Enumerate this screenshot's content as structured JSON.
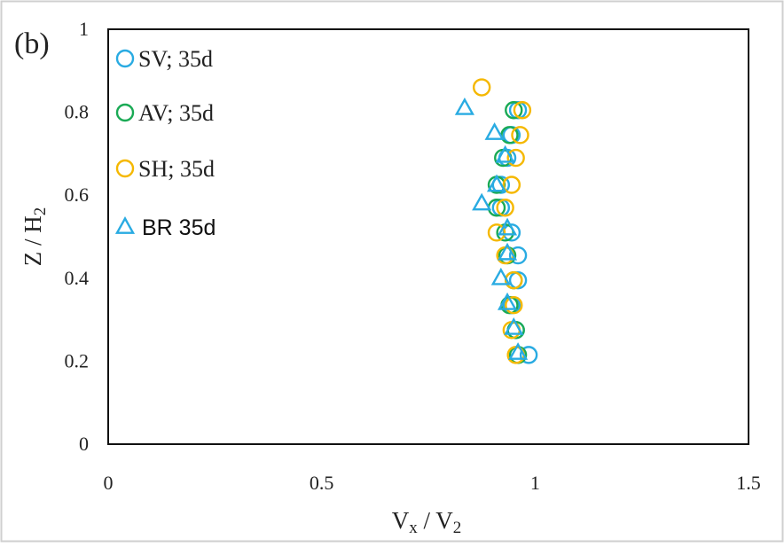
{
  "panel_label": "(b)",
  "chart_data": {
    "type": "scatter",
    "xlabel": "V_x / V_2",
    "ylabel": "Z / H_2",
    "xlim": [
      0,
      1.5
    ],
    "ylim": [
      0,
      1
    ],
    "xticks": [
      "0",
      "0.5",
      "1",
      "1.5"
    ],
    "yticks": [
      "0",
      "0.2",
      "0.4",
      "0.6",
      "0.8",
      "1"
    ],
    "legend_position": "top-left",
    "grid": false,
    "series": [
      {
        "name": "SV; 35d",
        "marker": "circle",
        "color": "#29abe2",
        "points": [
          {
            "x": 0.96,
            "y": 0.805
          },
          {
            "x": 0.945,
            "y": 0.745
          },
          {
            "x": 0.935,
            "y": 0.69
          },
          {
            "x": 0.92,
            "y": 0.625
          },
          {
            "x": 0.92,
            "y": 0.57
          },
          {
            "x": 0.945,
            "y": 0.51
          },
          {
            "x": 0.96,
            "y": 0.455
          },
          {
            "x": 0.96,
            "y": 0.395
          },
          {
            "x": 0.945,
            "y": 0.335
          },
          {
            "x": 0.955,
            "y": 0.275
          },
          {
            "x": 0.985,
            "y": 0.215
          }
        ]
      },
      {
        "name": "AV; 35d",
        "marker": "circle",
        "color": "#1aaa55",
        "points": [
          {
            "x": 0.95,
            "y": 0.805
          },
          {
            "x": 0.94,
            "y": 0.745
          },
          {
            "x": 0.925,
            "y": 0.69
          },
          {
            "x": 0.91,
            "y": 0.625
          },
          {
            "x": 0.91,
            "y": 0.57
          },
          {
            "x": 0.93,
            "y": 0.51
          },
          {
            "x": 0.935,
            "y": 0.455
          },
          {
            "x": 0.95,
            "y": 0.395
          },
          {
            "x": 0.94,
            "y": 0.335
          },
          {
            "x": 0.955,
            "y": 0.275
          },
          {
            "x": 0.96,
            "y": 0.215
          }
        ]
      },
      {
        "name": "SH; 35d",
        "marker": "circle",
        "color": "#f5b800",
        "points": [
          {
            "x": 0.875,
            "y": 0.86
          },
          {
            "x": 0.97,
            "y": 0.805
          },
          {
            "x": 0.965,
            "y": 0.745
          },
          {
            "x": 0.955,
            "y": 0.69
          },
          {
            "x": 0.945,
            "y": 0.625
          },
          {
            "x": 0.93,
            "y": 0.57
          },
          {
            "x": 0.91,
            "y": 0.51
          },
          {
            "x": 0.93,
            "y": 0.455
          },
          {
            "x": 0.95,
            "y": 0.395
          },
          {
            "x": 0.95,
            "y": 0.335
          },
          {
            "x": 0.945,
            "y": 0.275
          },
          {
            "x": 0.955,
            "y": 0.215
          }
        ]
      },
      {
        "name": "BR 35d",
        "marker": "triangle",
        "color": "#29abe2",
        "points": [
          {
            "x": 0.835,
            "y": 0.81
          },
          {
            "x": 0.905,
            "y": 0.75
          },
          {
            "x": 0.93,
            "y": 0.695
          },
          {
            "x": 0.91,
            "y": 0.625
          },
          {
            "x": 0.875,
            "y": 0.58
          },
          {
            "x": 0.935,
            "y": 0.52
          },
          {
            "x": 0.935,
            "y": 0.46
          },
          {
            "x": 0.92,
            "y": 0.4
          },
          {
            "x": 0.935,
            "y": 0.34
          },
          {
            "x": 0.95,
            "y": 0.28
          },
          {
            "x": 0.96,
            "y": 0.22
          }
        ]
      }
    ]
  }
}
